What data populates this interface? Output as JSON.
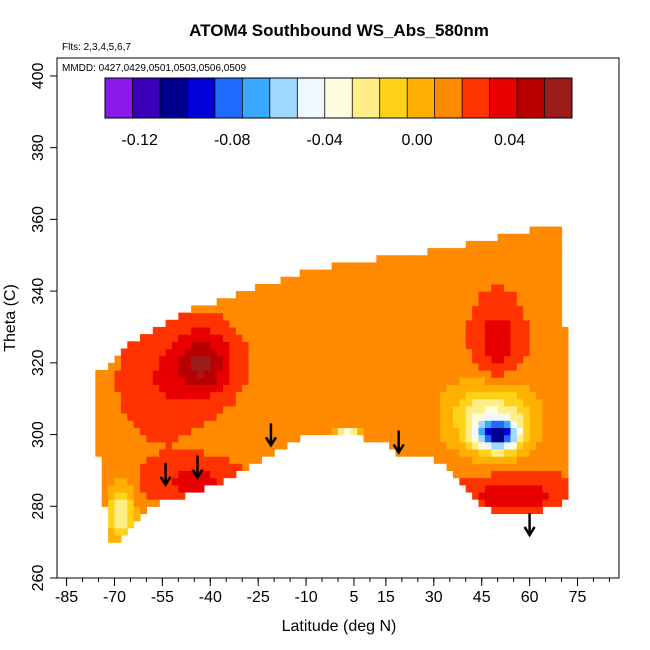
{
  "chart_data": {
    "type": "heatmap",
    "title": "ATOM4 Southbound WS_Abs_580nm",
    "flights_label": "Flts: 2,3,4,5,6,7",
    "dates_label": "MMDD: 0427,0429,0501,0503,0506,0509",
    "xlabel": "Latitude (deg N)",
    "ylabel": "Theta (C)",
    "xlim": [
      -88,
      88
    ],
    "ylim": [
      260,
      405
    ],
    "x_ticks": [
      "-85",
      "-70",
      "-55",
      "-40",
      "-25",
      "-10",
      "5",
      "15",
      "30",
      "45",
      "60",
      "75"
    ],
    "x_tick_values": [
      -85,
      -70,
      -55,
      -40,
      -25,
      -10,
      5,
      15,
      30,
      45,
      60,
      75
    ],
    "y_ticks": [
      "260",
      "280",
      "300",
      "320",
      "340",
      "360",
      "380",
      "400"
    ],
    "y_tick_values": [
      260,
      280,
      300,
      320,
      340,
      360,
      380,
      400
    ],
    "colorbar": {
      "ticks": [
        "-0.12",
        "-0.08",
        "-0.04",
        "0.00",
        "0.04"
      ],
      "tick_values": [
        -0.12,
        -0.08,
        -0.04,
        0.0,
        0.04
      ],
      "range": [
        -0.135,
        0.067
      ],
      "colors": [
        "#8a1ae8",
        "#3a00b8",
        "#00008c",
        "#0000d8",
        "#1f6aff",
        "#39a8ff",
        "#9fd9ff",
        "#f0f8ff",
        "#fffde0",
        "#ffee88",
        "#ffd21a",
        "#ffb000",
        "#ff8a00",
        "#ff3300",
        "#e80000",
        "#b80000",
        "#9c1c1c"
      ]
    },
    "field": {
      "background_value": 0.016,
      "domain_polygon": [
        [
          -75,
          318
        ],
        [
          -70,
          320
        ],
        [
          -66,
          325
        ],
        [
          -60,
          328
        ],
        [
          -52,
          332
        ],
        [
          -45,
          335
        ],
        [
          -38,
          337
        ],
        [
          -30,
          340
        ],
        [
          -20,
          342
        ],
        [
          -8,
          346
        ],
        [
          5,
          348
        ],
        [
          20,
          350
        ],
        [
          35,
          352
        ],
        [
          50,
          355
        ],
        [
          60,
          357
        ],
        [
          70,
          358
        ],
        [
          70,
          340
        ],
        [
          72,
          320
        ],
        [
          73,
          300
        ],
        [
          72,
          285
        ],
        [
          70,
          280
        ],
        [
          60,
          278
        ],
        [
          50,
          278
        ],
        [
          45,
          280
        ],
        [
          40,
          285
        ],
        [
          35,
          290
        ],
        [
          28,
          294
        ],
        [
          20,
          294
        ],
        [
          14,
          298
        ],
        [
          8,
          299
        ],
        [
          0,
          300
        ],
        [
          -8,
          300
        ],
        [
          -15,
          298
        ],
        [
          -22,
          294
        ],
        [
          -30,
          290
        ],
        [
          -38,
          286
        ],
        [
          -45,
          284
        ],
        [
          -52,
          282
        ],
        [
          -58,
          280
        ],
        [
          -62,
          276
        ],
        [
          -66,
          272
        ],
        [
          -70,
          268
        ],
        [
          -72,
          274
        ],
        [
          -76,
          300
        ],
        [
          -77,
          314
        ]
      ],
      "features": [
        {
          "lat": -42,
          "theta": 320,
          "value": 0.055,
          "lat_radius": 9,
          "theta_radius": 9
        },
        {
          "lat": -55,
          "theta": 315,
          "value": 0.03,
          "lat_radius": 12,
          "theta_radius": 14
        },
        {
          "lat": 50,
          "theta": 300,
          "value": -0.08,
          "lat_radius": 6,
          "theta_radius": 4
        },
        {
          "lat": 48,
          "theta": 305,
          "value": -0.03,
          "lat_radius": 13,
          "theta_radius": 10
        },
        {
          "lat": 50,
          "theta": 325,
          "value": 0.04,
          "lat_radius": 7,
          "theta_radius": 12
        },
        {
          "lat": 55,
          "theta": 283,
          "value": 0.04,
          "lat_radius": 16,
          "theta_radius": 6
        },
        {
          "lat": -45,
          "theta": 287,
          "value": 0.035,
          "lat_radius": 14,
          "theta_radius": 6
        },
        {
          "lat": 3,
          "theta": 300,
          "value": -0.06,
          "lat_radius": 4,
          "theta_radius": 1.5
        },
        {
          "lat": -68,
          "theta": 278,
          "value": -0.03,
          "lat_radius": 4,
          "theta_radius": 8
        }
      ]
    },
    "arrows": [
      {
        "lat": -54,
        "theta": 286
      },
      {
        "lat": -44,
        "theta": 288
      },
      {
        "lat": -21,
        "theta": 297
      },
      {
        "lat": 19,
        "theta": 295
      },
      {
        "lat": 60,
        "theta": 272
      }
    ]
  }
}
